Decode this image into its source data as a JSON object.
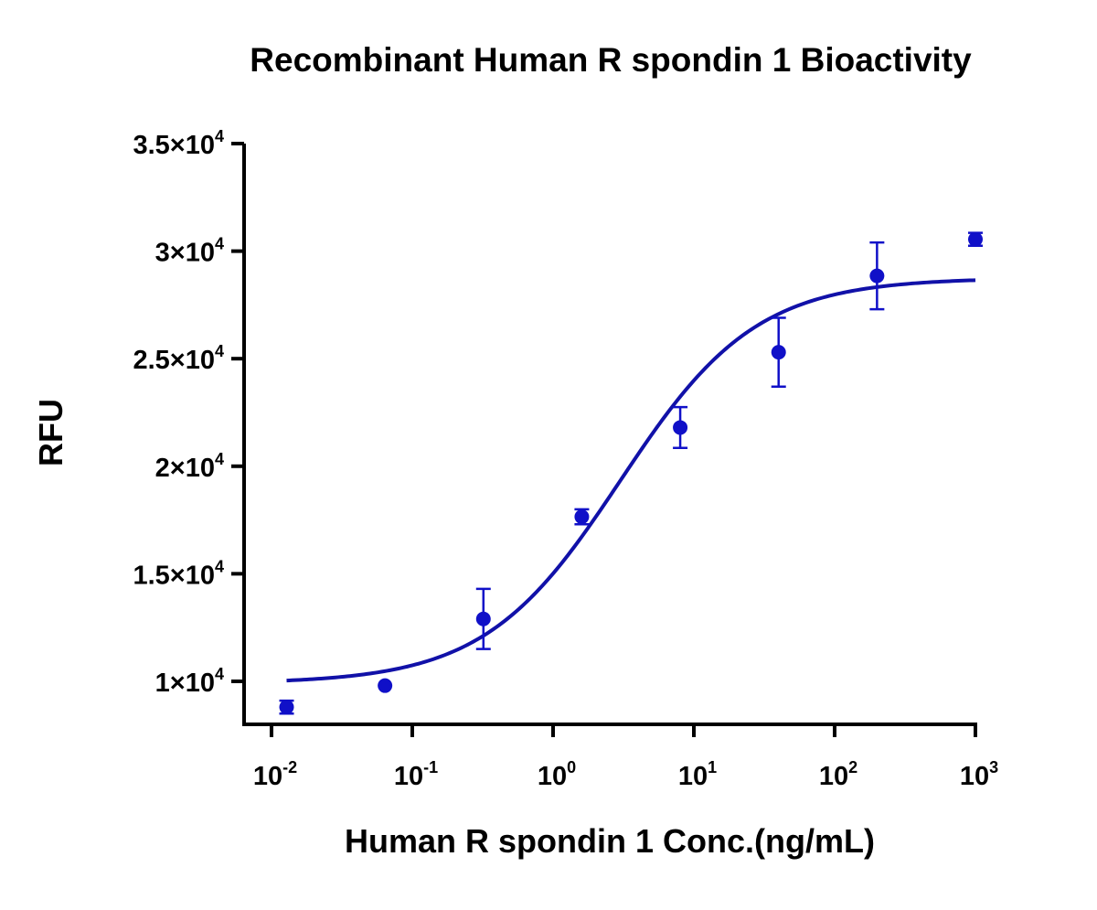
{
  "chart_data": {
    "type": "scatter",
    "title": "Recombinant Human R spondin 1 Bioactivity",
    "xlabel": "Human R spondin 1 Conc.(ng/mL)",
    "ylabel": "RFU",
    "x_scale": "log",
    "xlim": [
      0.01,
      1000
    ],
    "ylim": [
      8000,
      35000
    ],
    "x_ticks": [
      {
        "base": "10",
        "exp": "-2",
        "value": 0.01
      },
      {
        "base": "10",
        "exp": "-1",
        "value": 0.1
      },
      {
        "base": "10",
        "exp": "0",
        "value": 1
      },
      {
        "base": "10",
        "exp": "1",
        "value": 10
      },
      {
        "base": "10",
        "exp": "2",
        "value": 100
      },
      {
        "base": "10",
        "exp": "3",
        "value": 1000
      }
    ],
    "y_ticks": [
      {
        "mantissa": "1",
        "exp": "4",
        "value": 10000
      },
      {
        "mantissa": "1.5",
        "exp": "4",
        "value": 15000
      },
      {
        "mantissa": "2",
        "exp": "4",
        "value": 20000
      },
      {
        "mantissa": "2.5",
        "exp": "4",
        "value": 25000
      },
      {
        "mantissa": "3",
        "exp": "4",
        "value": 30000
      },
      {
        "mantissa": "3.5",
        "exp": "4",
        "value": 35000
      }
    ],
    "series": [
      {
        "color": "#1010c8",
        "points": [
          {
            "x": 0.0128,
            "y": 8800,
            "err": 300
          },
          {
            "x": 0.064,
            "y": 9800,
            "err": 0
          },
          {
            "x": 0.32,
            "y": 12900,
            "err": 1400
          },
          {
            "x": 1.6,
            "y": 17650,
            "err": 350
          },
          {
            "x": 8,
            "y": 21800,
            "err": 950
          },
          {
            "x": 40,
            "y": 25300,
            "err": 1600
          },
          {
            "x": 200,
            "y": 28850,
            "err": 1550
          },
          {
            "x": 1000,
            "y": 30550,
            "err": 300
          }
        ]
      }
    ],
    "fit": {
      "color": "#1111a8",
      "model": "4PL",
      "bottom": 9900,
      "top": 28750,
      "ec50": 3.0,
      "hill": 0.9,
      "x_range": [
        0.0128,
        1000
      ]
    },
    "grid": false,
    "legend": "none"
  }
}
